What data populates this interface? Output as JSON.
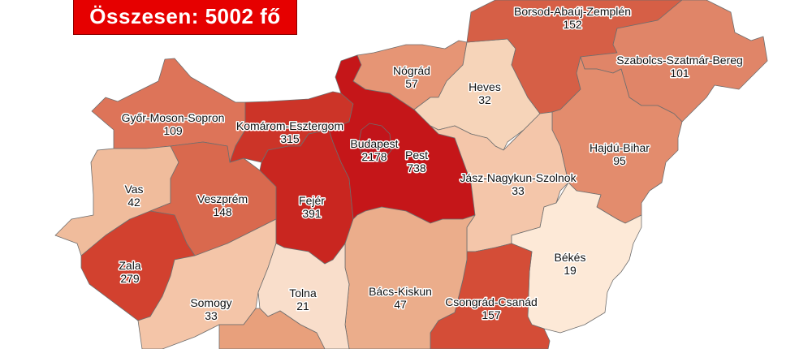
{
  "title": "Összesen: 5002 fő",
  "counties": [
    {
      "id": "gyor-moson-sopron",
      "name": "Győr-Moson-Sopron",
      "value": "109",
      "color": "#dd7459"
    },
    {
      "id": "vas",
      "name": "Vas",
      "value": "42",
      "color": "#f0bc9c"
    },
    {
      "id": "veszprem",
      "name": "Veszprém",
      "value": "148",
      "color": "#d9694e"
    },
    {
      "id": "zala",
      "name": "Zala",
      "value": "279",
      "color": "#d2412f"
    },
    {
      "id": "somogy",
      "name": "Somogy",
      "value": "33",
      "color": "#f4c5a8"
    },
    {
      "id": "komarom-esztergom",
      "name": "Komárom-Esztergom",
      "value": "315",
      "color": "#cc3428"
    },
    {
      "id": "fejer",
      "name": "Fejér",
      "value": "391",
      "color": "#c92620"
    },
    {
      "id": "pest",
      "name": "Pest",
      "value": "738",
      "color": "#c51619"
    },
    {
      "id": "budapest",
      "name": "Budapest",
      "value": "2178",
      "color": "#c2141a"
    },
    {
      "id": "nograd",
      "name": "Nógrád",
      "value": "57",
      "color": "#e69575"
    },
    {
      "id": "heves",
      "name": "Heves",
      "value": "32",
      "color": "#f6d4b9"
    },
    {
      "id": "borsod-abauj-zemplen",
      "name": "Borsod-Abaúj-Zemplén",
      "value": "152",
      "color": "#d65f46"
    },
    {
      "id": "szabolcs-szatmar-bereg",
      "name": "Szabolcs-Szatmár-Bereg",
      "value": "101",
      "color": "#e08568"
    },
    {
      "id": "hajdu-bihar",
      "name": "Hajdú-Bihar",
      "value": "95",
      "color": "#e38c6d"
    },
    {
      "id": "jasz-nagykun-szolnok",
      "name": "Jász-Nagykun-Szolnok",
      "value": "33",
      "color": "#f4c6aa"
    },
    {
      "id": "bekes",
      "name": "Békés",
      "value": "19",
      "color": "#fde9d7"
    },
    {
      "id": "csongrad-csanad",
      "name": "Csongrád-Csanád",
      "value": "157",
      "color": "#d44d37"
    },
    {
      "id": "bacs-kiskun",
      "name": "Bács-Kiskun",
      "value": "47",
      "color": "#ebad8b"
    },
    {
      "id": "tolna",
      "name": "Tolna",
      "value": "21",
      "color": "#f9decb"
    },
    {
      "id": "baranya",
      "name": "",
      "value": "",
      "color": "#e8a07c"
    }
  ]
}
